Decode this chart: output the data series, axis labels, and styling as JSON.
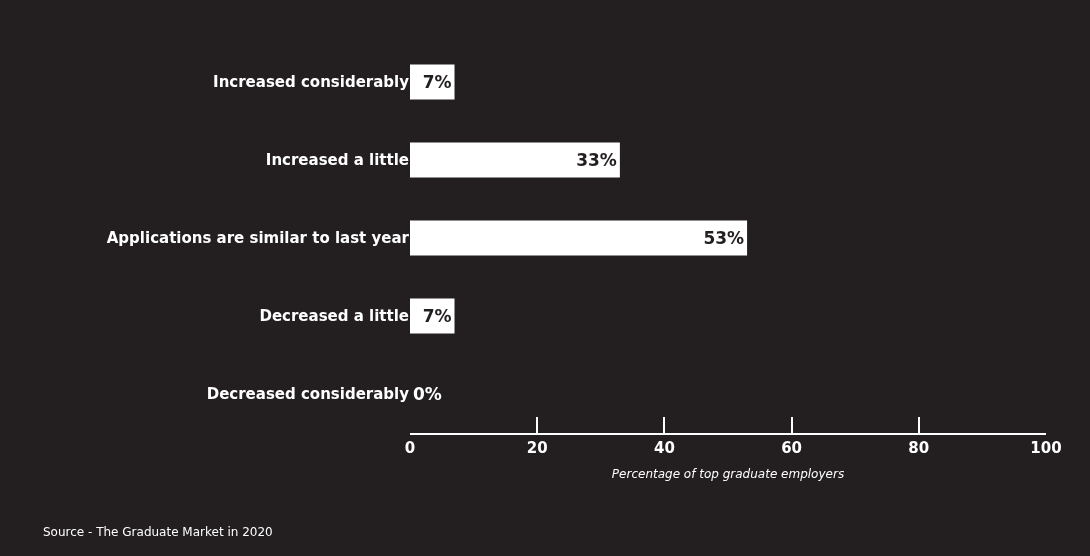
{
  "chart_data": {
    "type": "bar",
    "orientation": "horizontal",
    "categories": [
      "Increased considerably",
      "Increased a little",
      "Applications are similar to last year",
      "Decreased a little",
      "Decreased considerably"
    ],
    "values": [
      7,
      33,
      53,
      7,
      0
    ],
    "value_labels": [
      "7%",
      "33%",
      "53%",
      "7%",
      "0%"
    ],
    "color": "#ffffff",
    "xlim": [
      0,
      100
    ],
    "xticks": [
      0,
      20,
      40,
      60,
      80,
      100
    ],
    "xlabel": "Percentage of top graduate employers",
    "annotations": [
      "Source - The Graduate Market in 2020"
    ],
    "grid": false,
    "legend": false
  }
}
